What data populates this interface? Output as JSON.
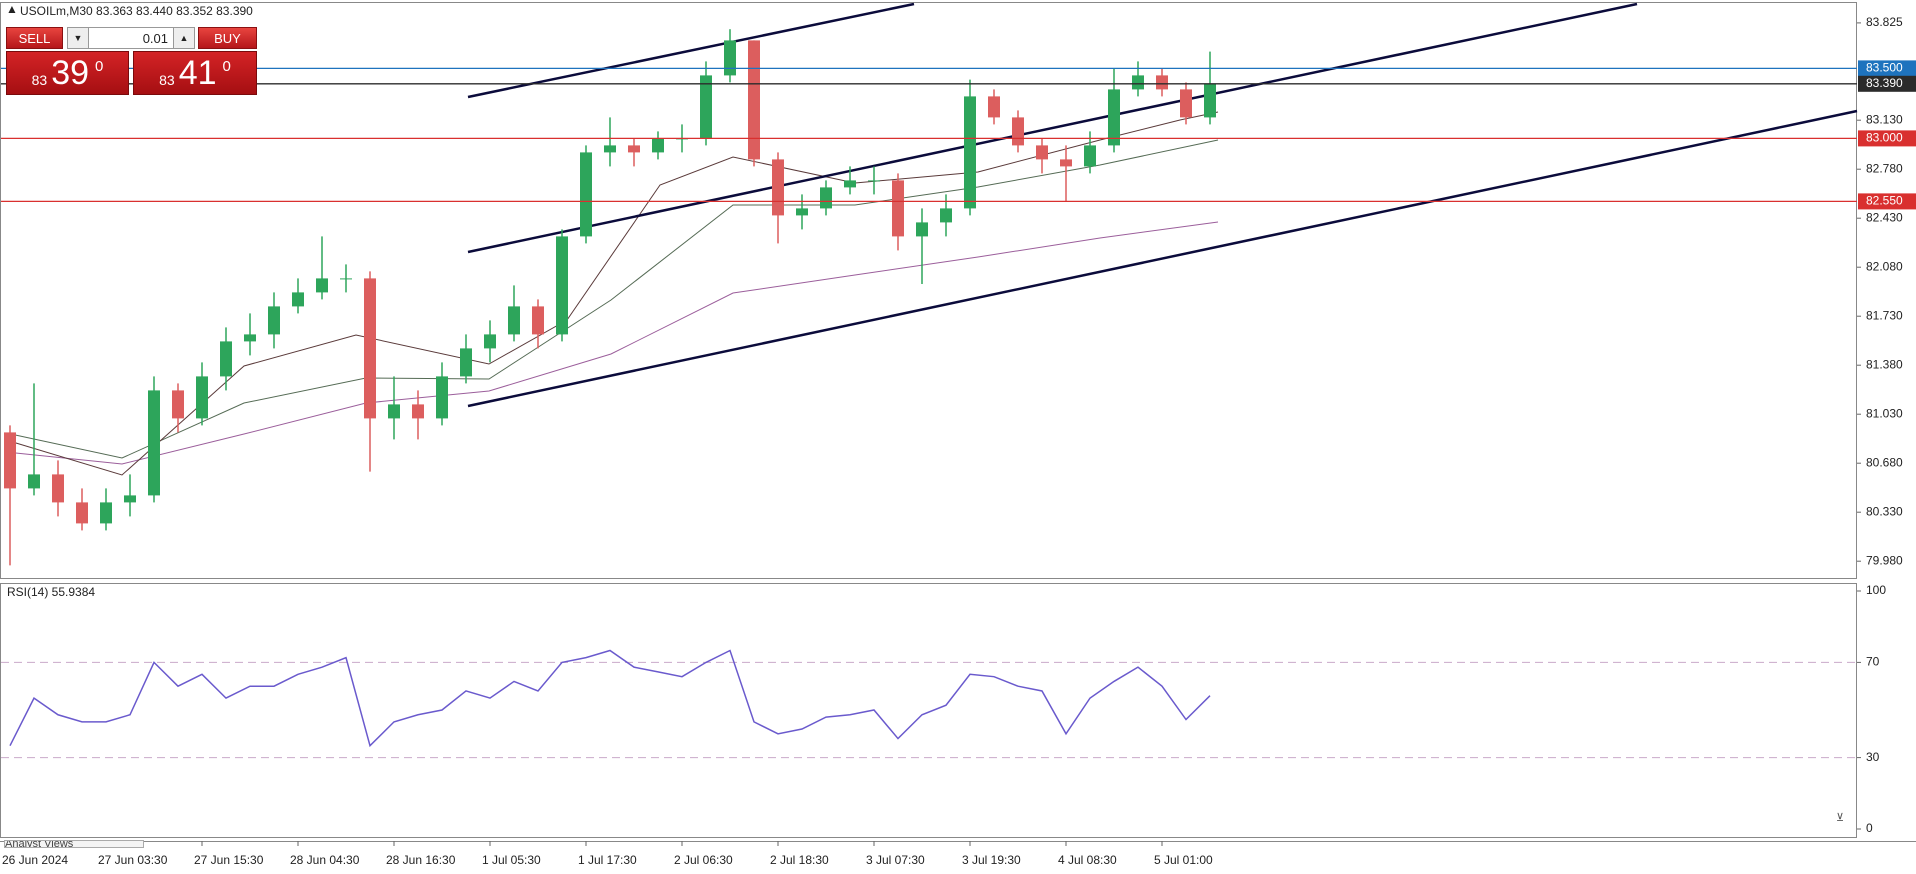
{
  "chart_data": [
    {
      "type": "candlestick",
      "title": "USOILm,M30 83.363 83.440 83.352 83.390",
      "categories": [
        "26 Jun 2024",
        null,
        null,
        null,
        "27 Jun 03:30",
        null,
        null,
        null,
        "27 Jun 15:30",
        null,
        null,
        null,
        "28 Jun 04:30",
        null,
        null,
        null,
        "28 Jun 16:30",
        null,
        null,
        null,
        "1 Jul 05:30",
        null,
        null,
        null,
        "1 Jul 17:30",
        null,
        null,
        null,
        "2 Jul 06:30",
        null,
        null,
        null,
        "2 Jul 18:30",
        null,
        null,
        null,
        "3 Jul 07:30",
        null,
        null,
        null,
        "3 Jul 19:30",
        null,
        null,
        null,
        "4 Jul 08:30",
        null,
        null,
        null,
        "5 Jul 01:00",
        null,
        null
      ],
      "open": [
        80.9,
        80.5,
        80.6,
        80.4,
        80.25,
        80.4,
        80.45,
        81.2,
        81.0,
        81.3,
        81.55,
        81.6,
        81.8,
        81.9,
        82.0,
        82.0,
        81.0,
        81.1,
        81.0,
        81.3,
        81.5,
        81.6,
        81.8,
        81.6,
        82.3,
        82.9,
        82.95,
        82.9,
        83.0,
        83.0,
        83.45,
        83.7,
        82.85,
        82.45,
        82.5,
        82.65,
        82.7,
        82.7,
        82.3,
        82.4,
        82.5,
        83.3,
        83.15,
        82.95,
        82.85,
        82.8,
        82.95,
        83.35,
        83.45,
        83.35,
        83.15
      ],
      "high": [
        80.95,
        81.25,
        80.7,
        80.5,
        80.5,
        80.6,
        81.3,
        81.25,
        81.4,
        81.65,
        81.75,
        81.9,
        82.0,
        82.3,
        82.1,
        82.05,
        81.3,
        81.2,
        81.4,
        81.6,
        81.7,
        81.95,
        81.85,
        82.35,
        82.95,
        83.15,
        83.0,
        83.05,
        83.1,
        83.55,
        83.78,
        83.7,
        82.9,
        82.6,
        82.7,
        82.8,
        82.8,
        82.75,
        82.5,
        82.6,
        83.42,
        83.35,
        83.2,
        83.0,
        82.95,
        83.05,
        83.5,
        83.55,
        83.5,
        83.4,
        83.62
      ],
      "low": [
        79.95,
        80.45,
        80.3,
        80.2,
        80.2,
        80.3,
        80.4,
        80.9,
        80.95,
        81.2,
        81.45,
        81.5,
        81.75,
        81.85,
        81.9,
        80.62,
        80.85,
        80.85,
        80.95,
        81.25,
        81.4,
        81.55,
        81.5,
        81.55,
        82.25,
        82.8,
        82.8,
        82.85,
        82.9,
        82.95,
        83.4,
        82.8,
        82.25,
        82.35,
        82.45,
        82.6,
        82.6,
        82.2,
        81.96,
        82.3,
        82.45,
        83.1,
        82.9,
        82.75,
        82.55,
        82.75,
        82.9,
        83.3,
        83.3,
        83.1,
        83.1
      ],
      "close": [
        80.5,
        80.6,
        80.4,
        80.25,
        80.4,
        80.45,
        81.2,
        81.0,
        81.3,
        81.55,
        81.6,
        81.8,
        81.9,
        82.0,
        82.0,
        81.0,
        81.1,
        81.0,
        81.3,
        81.5,
        81.6,
        81.8,
        81.6,
        82.3,
        82.9,
        82.95,
        82.9,
        83.0,
        83.0,
        83.45,
        83.7,
        82.85,
        82.45,
        82.5,
        82.65,
        82.7,
        82.7,
        82.3,
        82.4,
        82.5,
        83.3,
        83.15,
        82.95,
        82.85,
        82.8,
        82.95,
        83.35,
        83.45,
        83.35,
        83.15,
        83.39
      ],
      "up_color": "#2da55b",
      "down_color": "#dc5e5e",
      "ylim": [
        79.86,
        83.96
      ],
      "yticks": [
        {
          "value": 79.98,
          "label": "79.980"
        },
        {
          "value": 80.33,
          "label": "80.330"
        },
        {
          "value": 80.68,
          "label": "80.680"
        },
        {
          "value": 81.03,
          "label": "81.030"
        },
        {
          "value": 81.38,
          "label": "81.380"
        },
        {
          "value": 81.73,
          "label": "81.730"
        },
        {
          "value": 82.08,
          "label": "82.080"
        },
        {
          "value": 82.43,
          "label": "82.430"
        },
        {
          "value": 82.78,
          "label": "82.780"
        },
        {
          "value": 83.13,
          "label": "83.130"
        },
        83.825
      ],
      "levels": [
        {
          "value": 83.5,
          "label": "83.500",
          "color": "#1e73be"
        },
        {
          "value": 83.39,
          "label": "83.390",
          "color": "#2b2b2b"
        },
        {
          "value": 83.0,
          "label": "83.000",
          "color": "#d9302f"
        },
        {
          "value": 82.55,
          "label": "82.550",
          "color": "#d9302f"
        }
      ]
    },
    {
      "type": "line",
      "title": "RSI(14) 55.9384",
      "values": [
        35,
        55,
        48,
        45,
        45,
        48,
        70,
        60,
        65,
        55,
        60,
        60,
        65,
        68,
        72,
        35,
        45,
        48,
        50,
        58,
        55,
        62,
        58,
        70,
        72,
        75,
        68,
        66,
        64,
        70,
        75,
        45,
        40,
        42,
        47,
        48,
        50,
        38,
        48,
        52,
        65,
        64,
        60,
        58,
        40,
        55,
        62,
        68,
        60,
        46,
        56
      ],
      "color": "#6a5acd",
      "ylim": [
        0,
        100
      ],
      "yticks": [
        0,
        30,
        70,
        100
      ]
    }
  ],
  "trade_panel": {
    "sell": "SELL",
    "buy": "BUY",
    "lot": "0.01",
    "bid_small": "83",
    "bid_big": "39",
    "bid_sup": "0",
    "ask_small": "83",
    "ask_big": "41",
    "ask_sup": "0"
  },
  "footer": "Analyst Views"
}
